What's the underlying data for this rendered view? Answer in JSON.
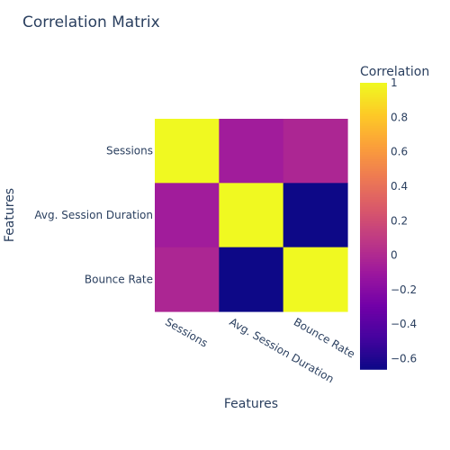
{
  "chart_data": {
    "type": "heatmap",
    "title": "Correlation Matrix",
    "xlabel": "Features",
    "ylabel": "Features",
    "x_categories": [
      "Sessions",
      "Avg. Session Duration",
      "Bounce Rate"
    ],
    "y_categories": [
      "Sessions",
      "Avg. Session Duration",
      "Bounce Rate"
    ],
    "values": [
      [
        1.0,
        -0.08,
        -0.02
      ],
      [
        -0.08,
        1.0,
        -0.66
      ],
      [
        -0.02,
        -0.66,
        1.0
      ]
    ],
    "zmin": -0.66,
    "zmax": 1.0,
    "colorscale": [
      "#0d0887",
      "#46039f",
      "#7201a8",
      "#9c179e",
      "#bd3786",
      "#d8576b",
      "#ed7953",
      "#fb9f3a",
      "#fdca26",
      "#f0f921"
    ],
    "colorbar": {
      "title": "Correlation",
      "ticks": [
        1,
        0.8,
        0.6,
        0.4,
        0.2,
        0,
        -0.2,
        -0.4,
        -0.6
      ],
      "tick_labels": [
        "1",
        "0.8",
        "0.6",
        "0.4",
        "0.2",
        "0",
        "−0.2",
        "−0.4",
        "−0.6"
      ]
    }
  }
}
